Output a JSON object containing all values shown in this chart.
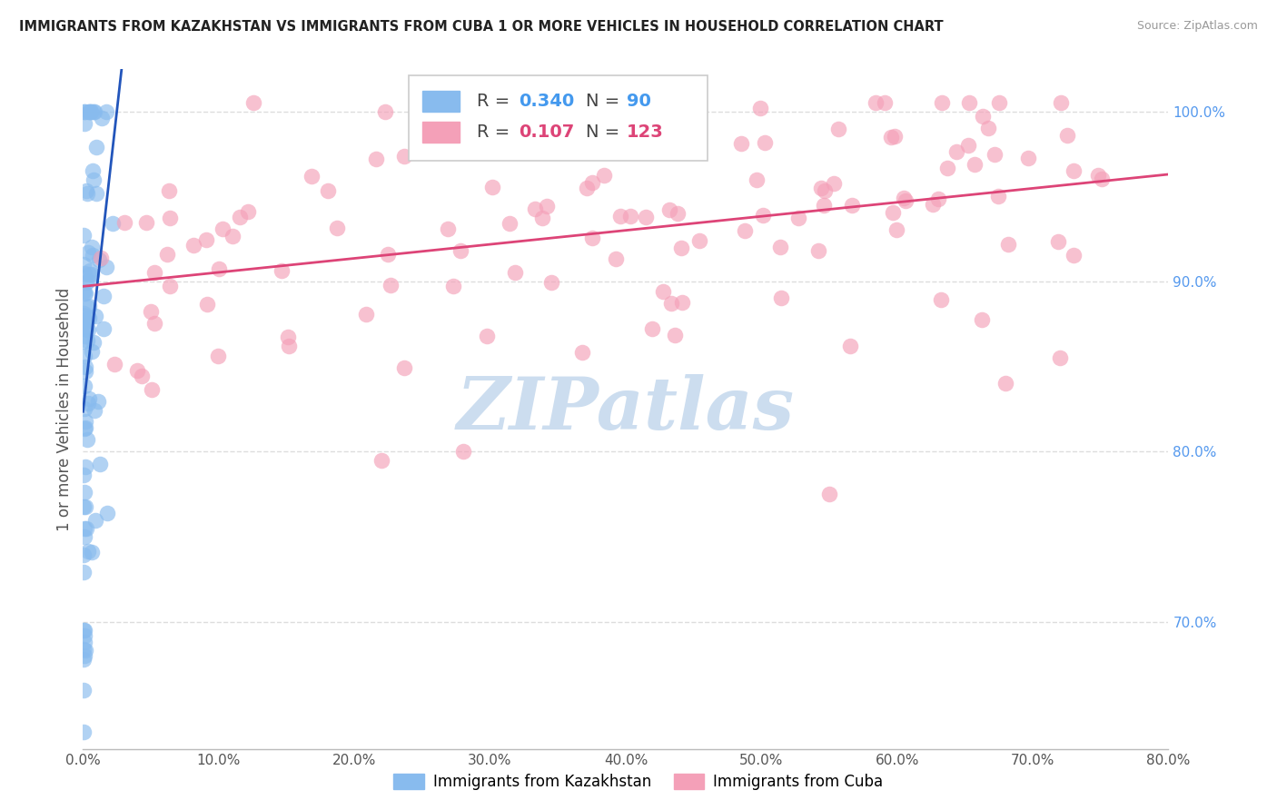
{
  "title": "IMMIGRANTS FROM KAZAKHSTAN VS IMMIGRANTS FROM CUBA 1 OR MORE VEHICLES IN HOUSEHOLD CORRELATION CHART",
  "source": "Source: ZipAtlas.com",
  "ylabel": "1 or more Vehicles in Household",
  "xlim": [
    0.0,
    0.8
  ],
  "ylim": [
    0.625,
    1.025
  ],
  "kazakhstan_R": 0.34,
  "kazakhstan_N": 90,
  "cuba_R": 0.107,
  "cuba_N": 123,
  "kazakhstan_color": "#88bbee",
  "cuba_color": "#f4a0b8",
  "kazakhstan_line_color": "#2255bb",
  "cuba_line_color": "#dd4477",
  "background_color": "#ffffff",
  "grid_color": "#dddddd",
  "watermark_color": "#ccddef",
  "title_color": "#222222",
  "source_color": "#999999",
  "ylabel_color": "#555555",
  "tick_color_x": "#555555",
  "tick_color_y": "#5599ee",
  "legend_r_color_kaz": "#4499ee",
  "legend_r_color_cuba": "#dd4477",
  "xtick_vals": [
    0.0,
    0.1,
    0.2,
    0.3,
    0.4,
    0.5,
    0.6,
    0.7,
    0.8
  ],
  "xtick_labels": [
    "0.0%",
    "10.0%",
    "20.0%",
    "30.0%",
    "40.0%",
    "50.0%",
    "60.0%",
    "70.0%",
    "80.0%"
  ],
  "ytick_vals": [
    0.7,
    0.8,
    0.9,
    1.0
  ],
  "ytick_labels": [
    "70.0%",
    "80.0%",
    "90.0%",
    "100.0%"
  ]
}
